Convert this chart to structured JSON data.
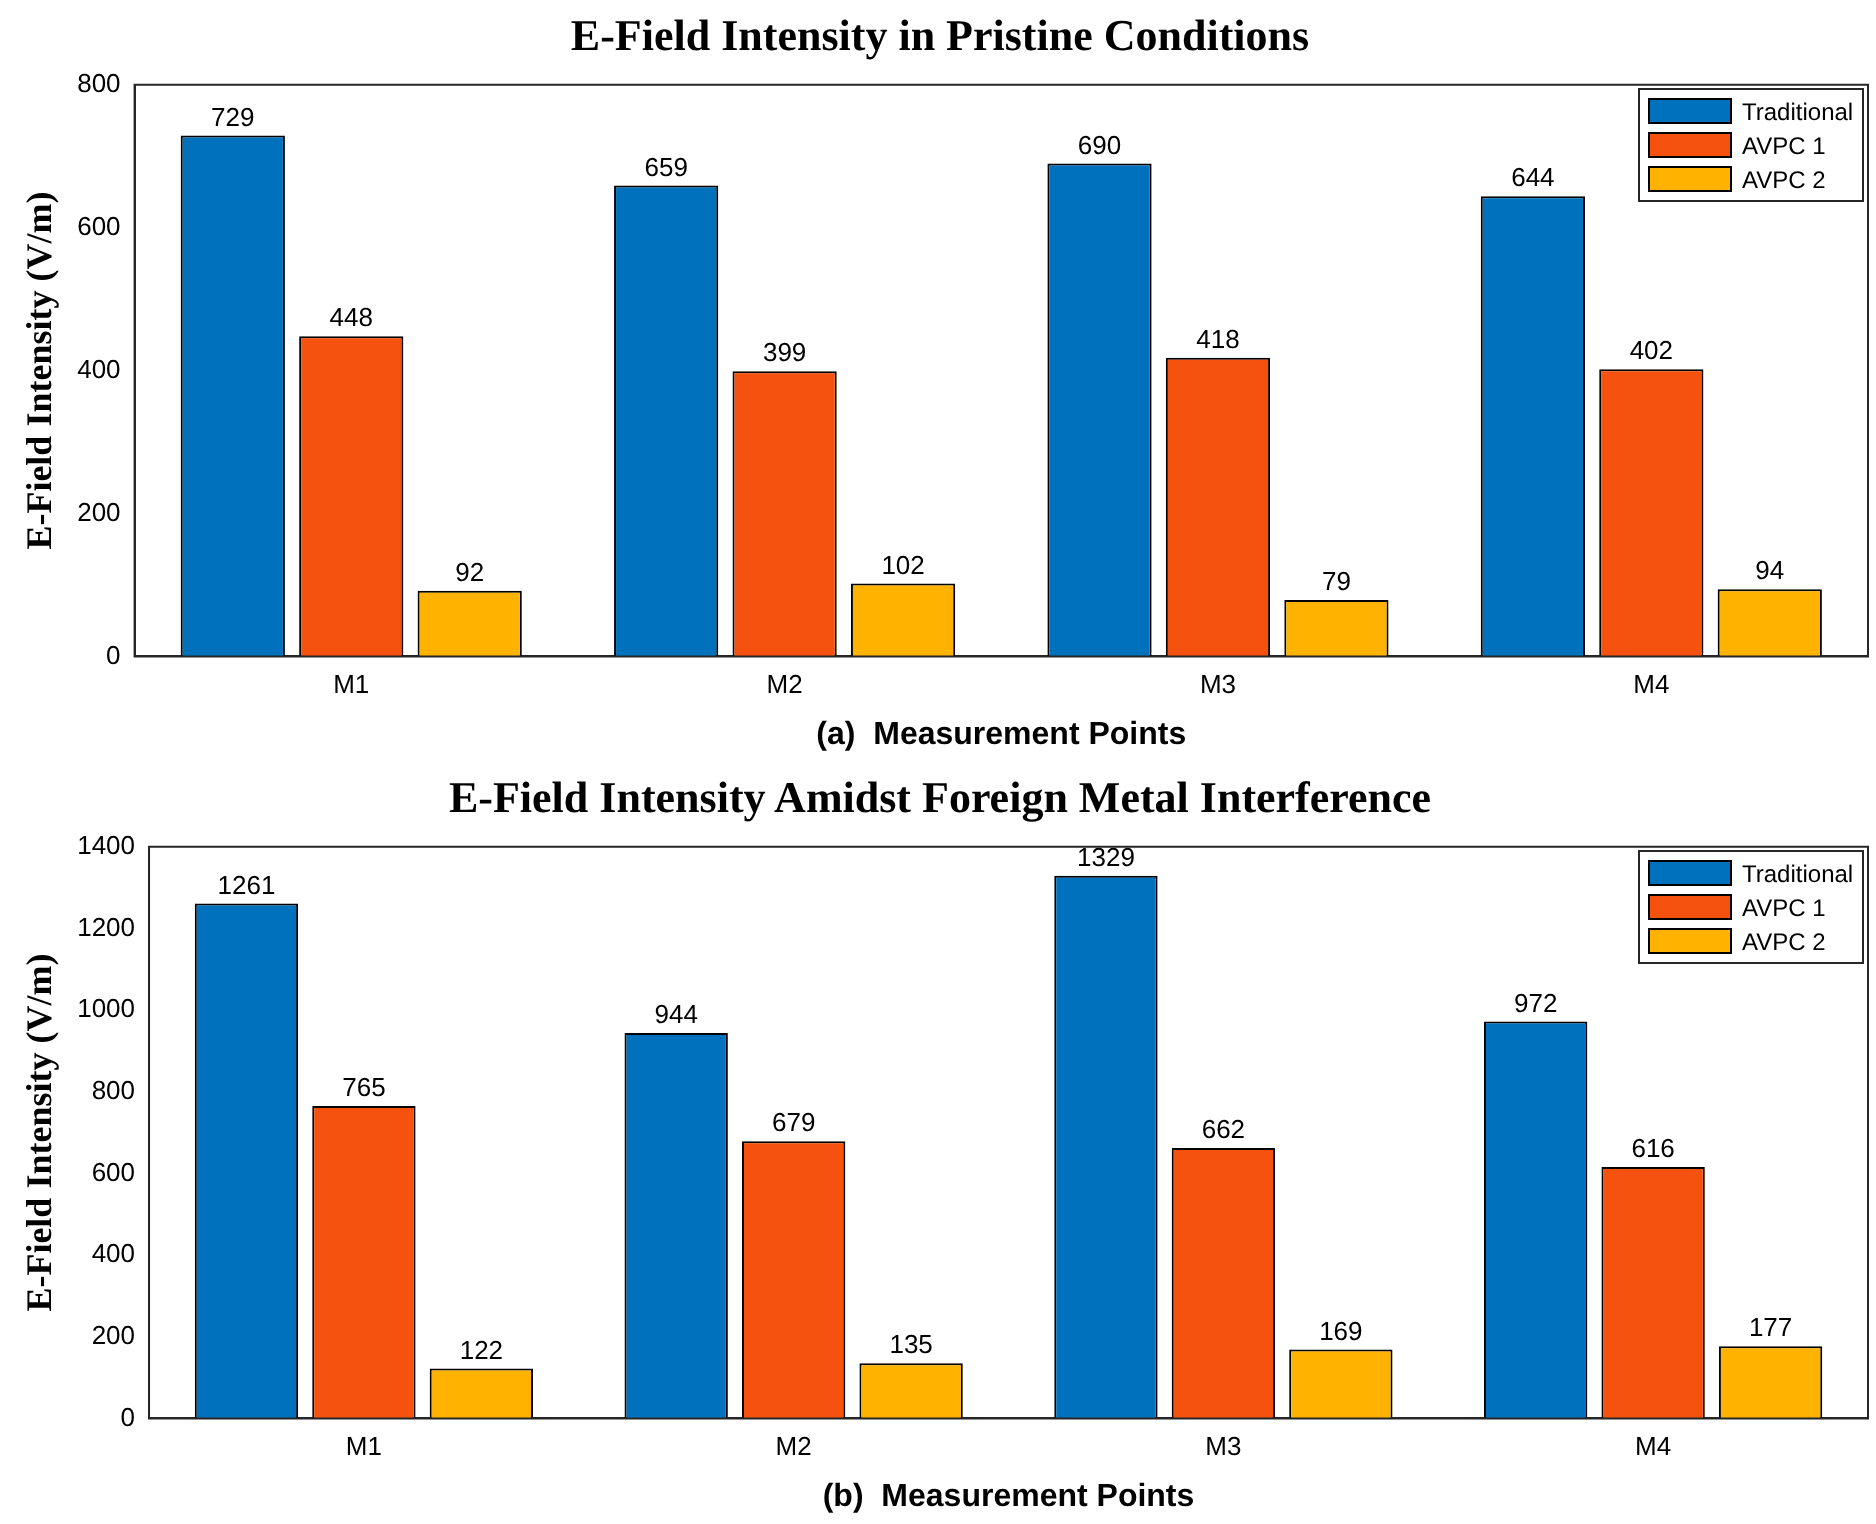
{
  "chart_data": [
    {
      "type": "bar",
      "title": "E-Field Intensity in Pristine Conditions",
      "xlabel": "(a)  Measurement Points",
      "ylabel": "E-Field Intensity (V/m)",
      "categories": [
        "M1",
        "M2",
        "M3",
        "M4"
      ],
      "series": [
        {
          "name": "Traditional",
          "color": "#0072bd",
          "values": [
            729,
            659,
            690,
            644
          ]
        },
        {
          "name": "AVPC 1",
          "color": "#f5520f",
          "values": [
            448,
            399,
            418,
            402
          ]
        },
        {
          "name": "AVPC 2",
          "color": "#ffb300",
          "values": [
            92,
            102,
            79,
            94
          ]
        }
      ],
      "ylim": [
        0,
        800
      ],
      "yticks": [
        0,
        200,
        400,
        600,
        800
      ],
      "grid": false,
      "legend": "top right",
      "data_labels": true
    },
    {
      "type": "bar",
      "title": "E-Field Intensity Amidst Foreign Metal Interference",
      "xlabel": "(b)  Measurement Points",
      "ylabel": "E-Field Intensity (V/m)",
      "categories": [
        "M1",
        "M2",
        "M3",
        "M4"
      ],
      "series": [
        {
          "name": "Traditional",
          "color": "#0072bd",
          "values": [
            1261,
            944,
            1329,
            972
          ]
        },
        {
          "name": "AVPC 1",
          "color": "#f5520f",
          "values": [
            765,
            679,
            662,
            616
          ]
        },
        {
          "name": "AVPC 2",
          "color": "#ffb300",
          "values": [
            122,
            135,
            169,
            177
          ]
        }
      ],
      "ylim": [
        0,
        1400
      ],
      "yticks": [
        0,
        200,
        400,
        600,
        800,
        1000,
        1200,
        1400
      ],
      "grid": false,
      "legend": "top right",
      "data_labels": true
    }
  ]
}
